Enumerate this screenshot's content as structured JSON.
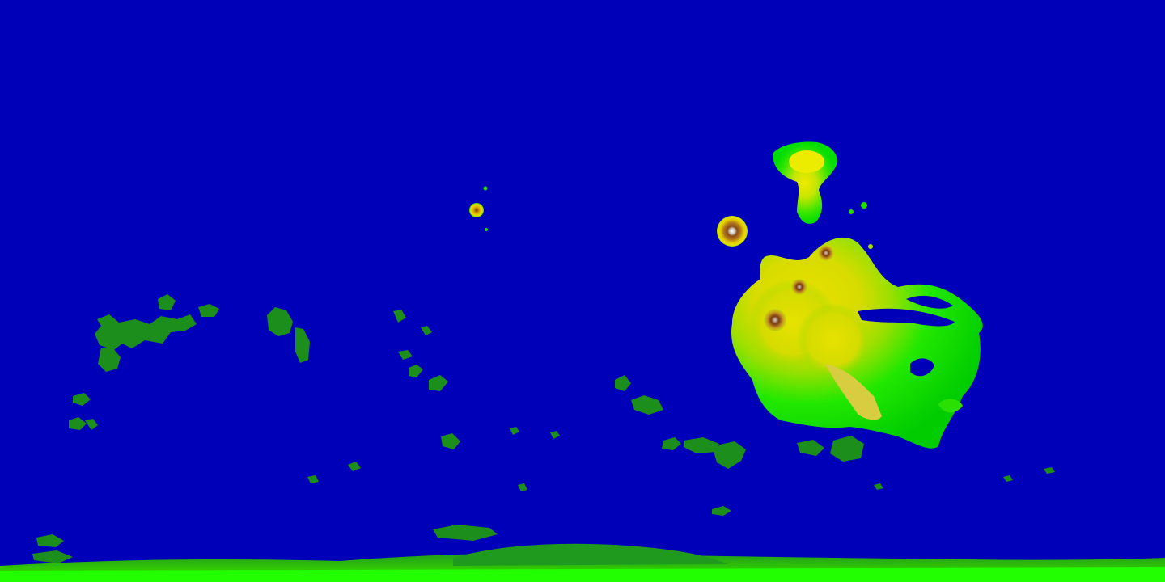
{
  "map": {
    "type": "elevation-colormap",
    "projection": "equirectangular",
    "legend": null,
    "colors": {
      "lowland": "#0000b8",
      "lowland_dark": "#0000a8",
      "low_green": "#1b8e1b",
      "green": "#00d400",
      "bright_green": "#22ff00",
      "yellow_green": "#aadd00",
      "yellow": "#e6e000",
      "tan": "#d8c060",
      "brown": "#8a4a14",
      "dark_brown": "#5a2a08",
      "summit": "#ecebe8"
    },
    "features": [
      {
        "id": "large-upland-complex",
        "kind": "highland"
      },
      {
        "id": "northern-highland",
        "kind": "highland"
      },
      {
        "id": "isolated-volcano",
        "kind": "volcano"
      },
      {
        "id": "small-volcano",
        "kind": "volcano"
      },
      {
        "id": "southern-highland-band",
        "kind": "highland"
      },
      {
        "id": "scattered-patches",
        "kind": "terrain"
      }
    ]
  }
}
